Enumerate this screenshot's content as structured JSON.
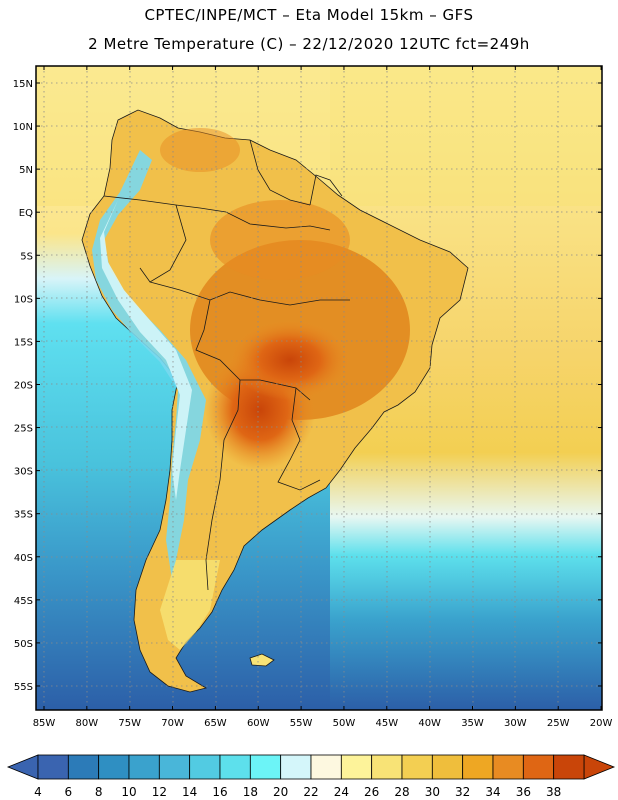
{
  "title": {
    "line1": "CPTEC/INPE/MCT –  Eta Model 15km – GFS",
    "line2": "2 Metre Temperature (C) – 22/12/2020 12UTC fct=249h"
  },
  "lat_labels": [
    "15N",
    "10N",
    "5N",
    "EQ",
    "5S",
    "10S",
    "15S",
    "20S",
    "25S",
    "30S",
    "35S",
    "40S",
    "45S",
    "50S",
    "55S"
  ],
  "lon_labels": [
    "85W",
    "80W",
    "75W",
    "70W",
    "65W",
    "60W",
    "55W",
    "50W",
    "45W",
    "40W",
    "35W",
    "30W",
    "25W",
    "20W"
  ],
  "colorbar": {
    "labels": [
      "4",
      "6",
      "8",
      "10",
      "12",
      "14",
      "16",
      "18",
      "20",
      "22",
      "24",
      "26",
      "28",
      "30",
      "32",
      "34",
      "36",
      "38"
    ],
    "colors": [
      "#3a64b0",
      "#2c7bb8",
      "#2f8fc2",
      "#3aa2cd",
      "#49b6d9",
      "#52cbe2",
      "#5de0ec",
      "#6cf4f7",
      "#d4f6fa",
      "#fdf8e0",
      "#fdf39a",
      "#f8e376",
      "#f3cf52",
      "#efbe3c",
      "#eea723",
      "#e88b22",
      "#df6614",
      "#c94509"
    ],
    "left_color": "#3a64b0",
    "right_color": "#c94509"
  },
  "map_colors": {
    "ocean_deep": "#2c5fa8",
    "ocean_mid": "#3a98c9",
    "ocean_light": "#49c2dc",
    "ocean_cyan": "#5fe0f0",
    "ocean_warm": "#fbe58a",
    "ocean_pale": "#fef2b0",
    "land_warm": "#f1c04a",
    "land_hot": "#e0851c",
    "land_hotter": "#cf6410",
    "andes": "#79d8ee"
  }
}
